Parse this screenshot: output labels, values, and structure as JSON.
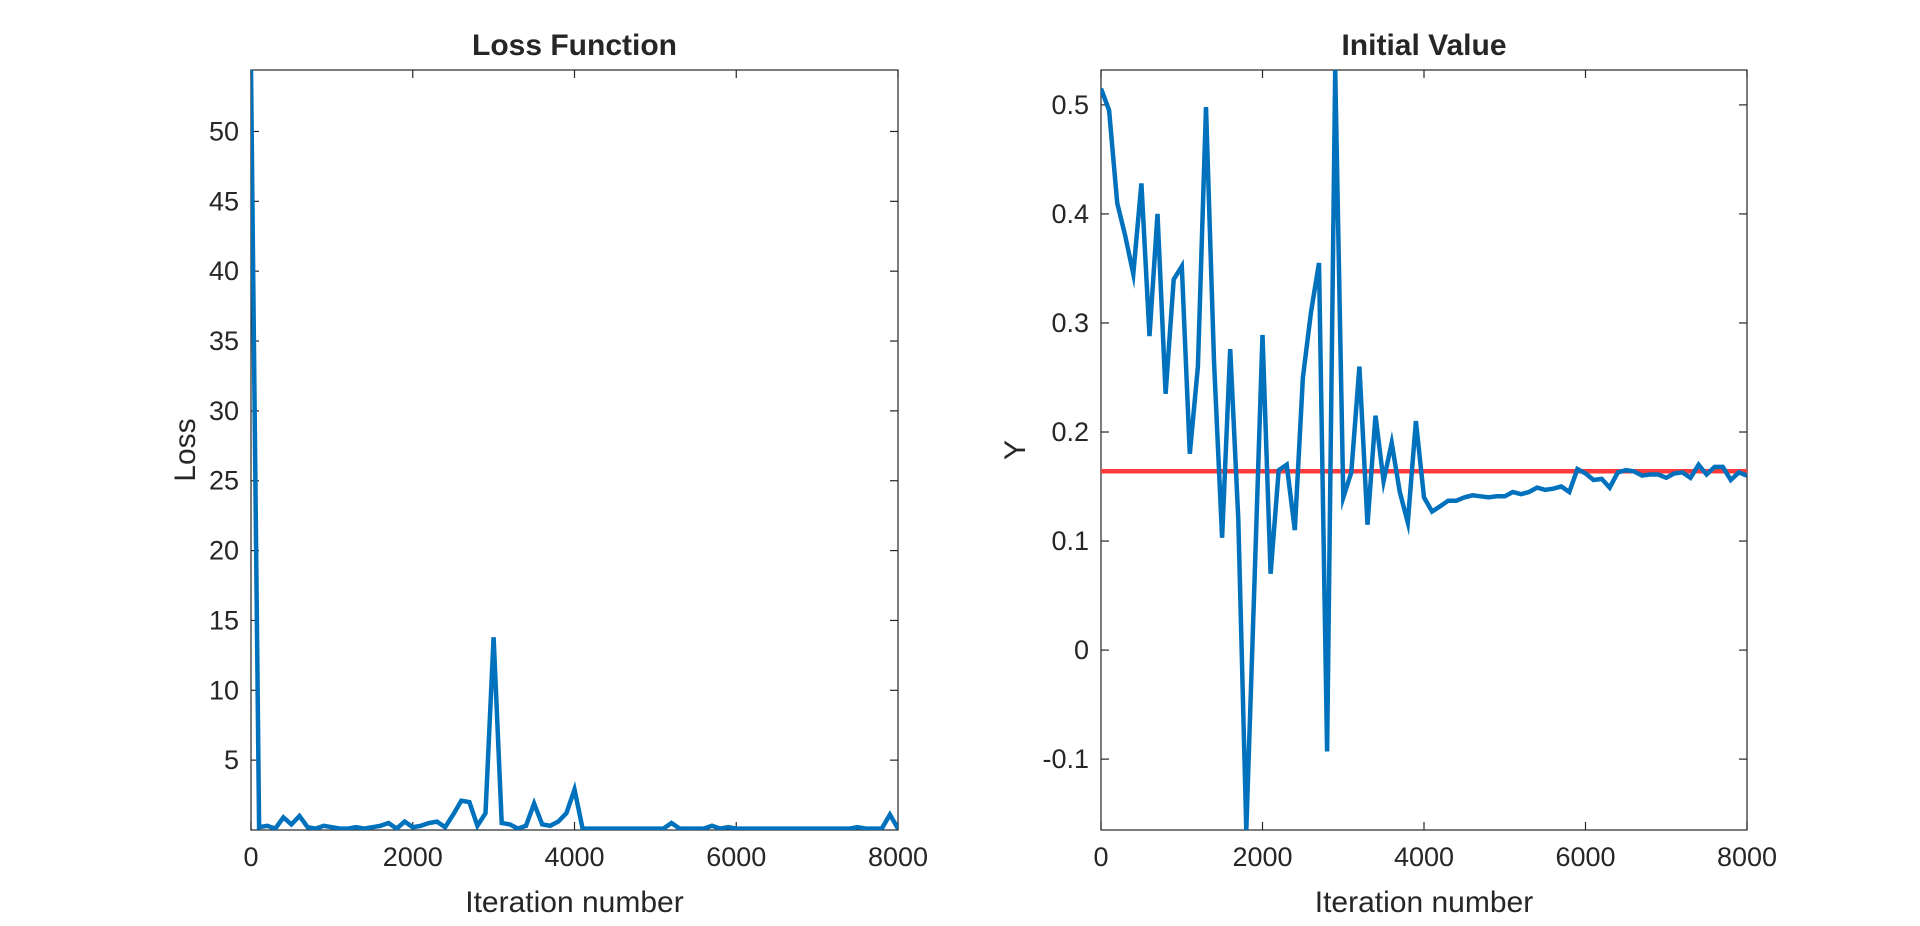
{
  "colors": {
    "line": "#0072BD",
    "reference": "#FF3B3B",
    "axes": "#262626",
    "background": "#FFFFFF"
  },
  "chart_data": [
    {
      "type": "line",
      "title": "Loss Function",
      "xlabel": "Iteration number",
      "ylabel": "Loss",
      "xlim": [
        0,
        8000
      ],
      "ylim": [
        0,
        54.4
      ],
      "xticks": [
        0,
        2000,
        4000,
        6000,
        8000
      ],
      "xtick_labels": [
        "0",
        "2000",
        "4000",
        "6000",
        "8000"
      ],
      "yticks": [
        5,
        10,
        15,
        20,
        25,
        30,
        35,
        40,
        45,
        50
      ],
      "ytick_labels": [
        "5",
        "10",
        "15",
        "20",
        "25",
        "30",
        "35",
        "40",
        "45",
        "50"
      ],
      "grid": false,
      "series": [
        {
          "x": [
            0,
            100,
            200,
            300,
            400,
            500,
            600,
            700,
            800,
            900,
            1000,
            1100,
            1200,
            1300,
            1400,
            1500,
            1600,
            1700,
            1800,
            1900,
            2000,
            2100,
            2200,
            2300,
            2400,
            2500,
            2600,
            2700,
            2800,
            2900,
            3000,
            3100,
            3200,
            3300,
            3400,
            3500,
            3600,
            3700,
            3800,
            3900,
            4000,
            4100,
            4200,
            4300,
            4400,
            4500,
            4600,
            4700,
            4800,
            4900,
            5000,
            5100,
            5200,
            5300,
            5400,
            5500,
            5600,
            5700,
            5800,
            5900,
            6000,
            6100,
            6200,
            6300,
            6400,
            6500,
            6600,
            6700,
            6800,
            6900,
            7000,
            7100,
            7200,
            7300,
            7400,
            7500,
            7600,
            7700,
            7800,
            7900,
            8000
          ],
          "y": [
            54.4,
            0.2,
            0.3,
            0.1,
            0.9,
            0.4,
            1.0,
            0.2,
            0.1,
            0.3,
            0.2,
            0.1,
            0.1,
            0.2,
            0.1,
            0.2,
            0.3,
            0.5,
            0.1,
            0.6,
            0.2,
            0.3,
            0.5,
            0.6,
            0.2,
            1.1,
            2.1,
            2.0,
            0.3,
            1.2,
            13.8,
            0.5,
            0.4,
            0.1,
            0.3,
            1.9,
            0.4,
            0.3,
            0.6,
            1.2,
            2.9,
            0.1,
            0.1,
            0.1,
            0.1,
            0.1,
            0.1,
            0.1,
            0.1,
            0.1,
            0.1,
            0.1,
            0.5,
            0.1,
            0.1,
            0.1,
            0.1,
            0.3,
            0.1,
            0.2,
            0.1,
            0.1,
            0.1,
            0.1,
            0.1,
            0.1,
            0.1,
            0.1,
            0.1,
            0.1,
            0.1,
            0.1,
            0.1,
            0.1,
            0.1,
            0.2,
            0.1,
            0.1,
            0.1,
            1.1,
            0.1
          ]
        }
      ]
    },
    {
      "type": "line",
      "title": "Initial Value",
      "xlabel": "Iteration number",
      "ylabel": "Y",
      "xlim": [
        0,
        8000
      ],
      "ylim": [
        -0.165,
        0.532
      ],
      "xticks": [
        0,
        2000,
        4000,
        6000,
        8000
      ],
      "xtick_labels": [
        "0",
        "2000",
        "4000",
        "6000",
        "8000"
      ],
      "yticks": [
        -0.1,
        0,
        0.1,
        0.2,
        0.3,
        0.4,
        0.5
      ],
      "ytick_labels": [
        "-0.1",
        "0",
        "0.1",
        "0.2",
        "0.3",
        "0.4",
        "0.5"
      ],
      "grid": false,
      "reference_line": {
        "y": 0.164
      },
      "series": [
        {
          "x": [
            0,
            100,
            200,
            300,
            400,
            500,
            600,
            700,
            800,
            900,
            1000,
            1100,
            1200,
            1300,
            1400,
            1500,
            1600,
            1700,
            1800,
            1900,
            2000,
            2100,
            2200,
            2300,
            2400,
            2500,
            2600,
            2700,
            2800,
            2900,
            3000,
            3100,
            3200,
            3300,
            3400,
            3500,
            3600,
            3700,
            3800,
            3900,
            4000,
            4100,
            4200,
            4300,
            4400,
            4500,
            4600,
            4700,
            4800,
            4900,
            5000,
            5100,
            5200,
            5300,
            5400,
            5500,
            5600,
            5700,
            5800,
            5900,
            6000,
            6100,
            6200,
            6300,
            6400,
            6500,
            6600,
            6700,
            6800,
            6900,
            7000,
            7100,
            7200,
            7300,
            7400,
            7500,
            7600,
            7700,
            7800,
            7900,
            8000
          ],
          "y": [
            0.515,
            0.495,
            0.41,
            0.38,
            0.345,
            0.428,
            0.288,
            0.4,
            0.235,
            0.34,
            0.352,
            0.18,
            0.26,
            0.498,
            0.265,
            0.103,
            0.276,
            0.12,
            -0.165,
            0.06,
            0.289,
            0.07,
            0.165,
            0.17,
            0.11,
            0.25,
            0.31,
            0.355,
            -0.093,
            0.532,
            0.14,
            0.163,
            0.26,
            0.115,
            0.215,
            0.155,
            0.19,
            0.145,
            0.117,
            0.21,
            0.14,
            0.127,
            0.132,
            0.137,
            0.137,
            0.14,
            0.142,
            0.141,
            0.14,
            0.141,
            0.141,
            0.145,
            0.143,
            0.145,
            0.149,
            0.147,
            0.148,
            0.15,
            0.145,
            0.166,
            0.162,
            0.156,
            0.157,
            0.149,
            0.163,
            0.165,
            0.164,
            0.16,
            0.161,
            0.161,
            0.158,
            0.162,
            0.163,
            0.158,
            0.17,
            0.161,
            0.168,
            0.168,
            0.156,
            0.163,
            0.16
          ]
        }
      ]
    }
  ]
}
